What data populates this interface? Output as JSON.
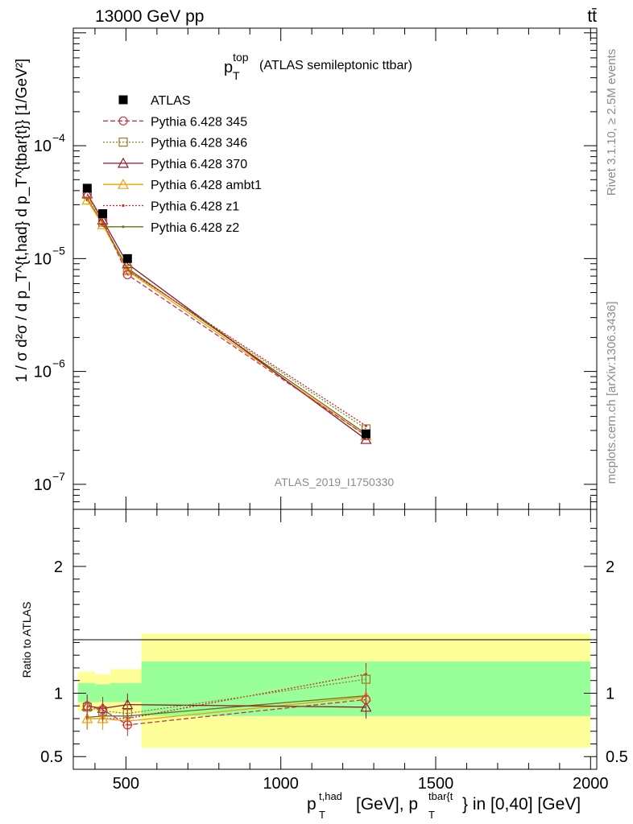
{
  "header": {
    "energy_label": "13000 GeV pp",
    "process_label": "tt̄"
  },
  "side_labels": {
    "rivet": "Rivet 3.1.10, ≥ 2.5M events",
    "mcplots": "mcplots.cern.ch [arXiv:1306.3436]"
  },
  "analysis_id": "ATLAS_2019_I1750330",
  "chart_data": [
    {
      "type": "line",
      "title": "p_T^top (ATLAS semileptonic ttbar)",
      "title_main": "p",
      "title_sub": "T",
      "title_sup": "top",
      "title_rest": "(ATLAS semileptonic ttbar)",
      "ylabel": "1 / σ d²σ / d p_T^{t,had} d p_T^{tbar{t}} [1/GeV²]",
      "yscale": "log",
      "ylim": [
        6e-08,
        0.0011
      ],
      "xlim": [
        330,
        2020
      ],
      "y_tick_labels": [
        {
          "value": 1e-07,
          "base": "10",
          "exp": "−7"
        },
        {
          "value": 1e-06,
          "base": "10",
          "exp": "−6"
        },
        {
          "value": 1e-05,
          "base": "10",
          "exp": "−5"
        },
        {
          "value": 0.0001,
          "base": "10",
          "exp": "−4"
        }
      ],
      "legend_placement": "top-left",
      "x": [
        375,
        425,
        505,
        1275
      ],
      "series": [
        {
          "name": "ATLAS",
          "color": "#000000",
          "marker": "filled-square",
          "line": "none",
          "values": [
            4.2e-05,
            2.5e-05,
            1e-05,
            2.8e-07
          ]
        },
        {
          "name": "Pythia 6.428 345",
          "color": "#c0384a",
          "marker": "open-circle",
          "line": "dashed",
          "values": [
            3.75e-05,
            2.15e-05,
            7.2e-06,
            2.7e-07
          ]
        },
        {
          "name": "Pythia 6.428 346",
          "color": "#9a7a28",
          "marker": "open-square",
          "line": "dotted",
          "values": [
            3.7e-05,
            2.1e-05,
            8e-06,
            3.1e-07
          ]
        },
        {
          "name": "Pythia 6.428 370",
          "color": "#8b1a2a",
          "marker": "open-triangle",
          "line": "solid",
          "values": [
            3.75e-05,
            2.2e-05,
            9e-06,
            2.5e-07
          ]
        },
        {
          "name": "Pythia 6.428 ambt1",
          "color": "#f2a000",
          "marker": "open-triangle",
          "line": "solid",
          "values": [
            3.3e-05,
            2e-05,
            7.8e-06,
            2.7e-07
          ]
        },
        {
          "name": "Pythia 6.428 z1",
          "color": "#d42020",
          "marker": "small-dot",
          "line": "dotted",
          "values": [
            3.3e-05,
            2e-05,
            7.9e-06,
            3.3e-07
          ]
        },
        {
          "name": "Pythia 6.428 z2",
          "color": "#6e6e18",
          "marker": "small-dot",
          "line": "solid",
          "values": [
            3.4e-05,
            2.05e-05,
            8.2e-06,
            2.8e-07
          ]
        }
      ]
    },
    {
      "type": "line",
      "ylabel": "Ratio to ATLAS",
      "ylim": [
        0.4,
        2.45
      ],
      "xlim": [
        330,
        2020
      ],
      "y_tick_labels": [
        {
          "value": 0.5,
          "label": "0.5"
        },
        {
          "value": 1,
          "label": "1"
        },
        {
          "value": 2,
          "label": "2"
        }
      ],
      "x_tick_labels": [
        {
          "value": 500,
          "label": "500"
        },
        {
          "value": 1000,
          "label": "1000"
        },
        {
          "value": 1500,
          "label": "1500"
        },
        {
          "value": 2000,
          "label": "2000"
        }
      ],
      "xlabel": "p_T^{t,had} [GeV], p_T^{tbar{t}} in [0,40] [GeV]",
      "xlabel_parts": {
        "p1": "p",
        "p1_sub": "T",
        "p1_sup": "t,had",
        "mid": "[GeV], p",
        "p2_sub": "T",
        "p2_sup": "tbar{t",
        "end": "} in [0,40] [GeV]"
      },
      "uncertainty_bands": [
        {
          "x_range": [
            345,
            400
          ],
          "stat_lo": 0.93,
          "stat_hi": 1.08,
          "total_lo": 0.86,
          "total_hi": 1.17
        },
        {
          "x_range": [
            400,
            450
          ],
          "stat_lo": 0.93,
          "stat_hi": 1.07,
          "total_lo": 0.86,
          "total_hi": 1.15
        },
        {
          "x_range": [
            450,
            550
          ],
          "stat_lo": 0.93,
          "stat_hi": 1.08,
          "total_lo": 0.84,
          "total_hi": 1.19
        },
        {
          "x_range": [
            550,
            2000
          ],
          "stat_lo": 0.82,
          "stat_hi": 1.25,
          "total_lo": 0.57,
          "total_hi": 1.47
        }
      ],
      "band_colors": {
        "stat": "#99ff99",
        "total": "#ffff99"
      },
      "x": [
        375,
        425,
        505,
        1275
      ],
      "series": [
        {
          "name": "Pythia 6.428 345",
          "values": [
            0.9,
            0.87,
            0.75,
            0.95
          ]
        },
        {
          "name": "Pythia 6.428 346",
          "values": [
            0.89,
            0.86,
            0.84,
            1.11
          ]
        },
        {
          "name": "Pythia 6.428 370",
          "values": [
            0.9,
            0.88,
            0.91,
            0.89
          ]
        },
        {
          "name": "Pythia 6.428 ambt1",
          "values": [
            0.8,
            0.8,
            0.78,
            0.97
          ]
        },
        {
          "name": "Pythia 6.428 z1",
          "values": [
            0.8,
            0.8,
            0.8,
            1.15
          ]
        },
        {
          "name": "Pythia 6.428 z2",
          "values": [
            0.81,
            0.82,
            0.82,
            0.98
          ]
        }
      ]
    }
  ]
}
